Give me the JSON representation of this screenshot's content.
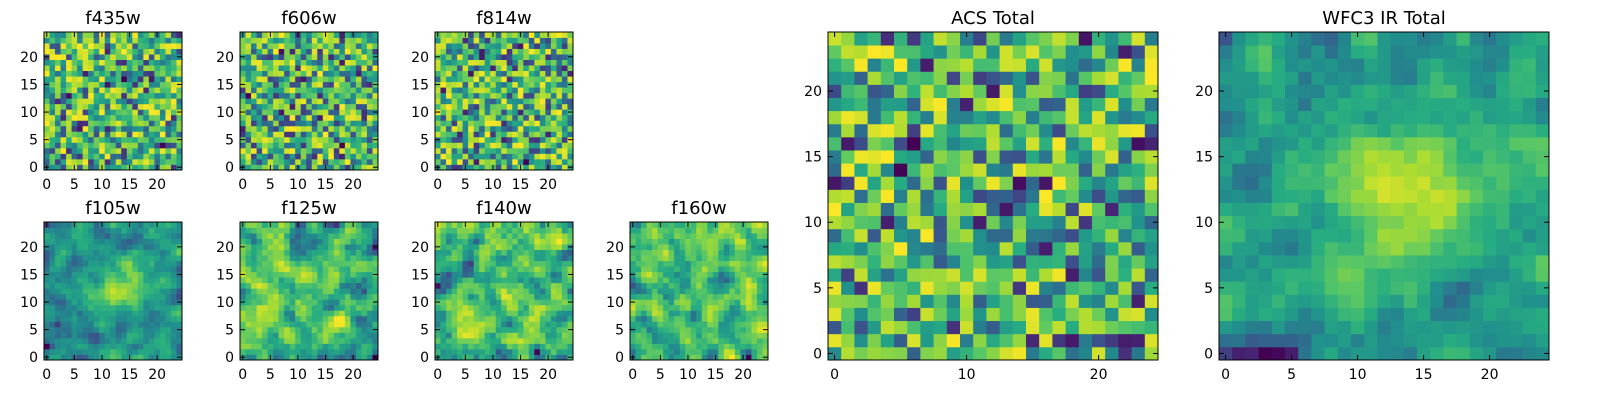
{
  "chart_data": [
    {
      "type": "heatmap",
      "title": "f435w",
      "xlim": [
        -0.5,
        24.5
      ],
      "ylim": [
        -0.5,
        24.5
      ],
      "xticks": [
        0,
        5,
        10,
        15,
        20
      ],
      "yticks": [
        0,
        5,
        10,
        15,
        20
      ],
      "grid": false,
      "colormap": "viridis"
    },
    {
      "type": "heatmap",
      "title": "f606w",
      "xlim": [
        -0.5,
        24.5
      ],
      "ylim": [
        -0.5,
        24.5
      ],
      "xticks": [
        0,
        5,
        10,
        15,
        20
      ],
      "yticks": [
        0,
        5,
        10,
        15,
        20
      ],
      "grid": false,
      "colormap": "viridis"
    },
    {
      "type": "heatmap",
      "title": "f814w",
      "xlim": [
        -0.5,
        24.5
      ],
      "ylim": [
        -0.5,
        24.5
      ],
      "xticks": [
        0,
        5,
        10,
        15,
        20
      ],
      "yticks": [
        0,
        5,
        10,
        15,
        20
      ],
      "grid": false,
      "colormap": "viridis"
    },
    {
      "type": "heatmap",
      "title": "f105w",
      "xlim": [
        -0.5,
        24.5
      ],
      "ylim": [
        -0.5,
        24.5
      ],
      "xticks": [
        0,
        5,
        10,
        15,
        20
      ],
      "yticks": [
        0,
        5,
        10,
        15,
        20
      ],
      "grid": false,
      "colormap": "viridis"
    },
    {
      "type": "heatmap",
      "title": "f125w",
      "xlim": [
        -0.5,
        24.5
      ],
      "ylim": [
        -0.5,
        24.5
      ],
      "xticks": [
        0,
        5,
        10,
        15,
        20
      ],
      "yticks": [
        0,
        5,
        10,
        15,
        20
      ],
      "grid": false,
      "colormap": "viridis"
    },
    {
      "type": "heatmap",
      "title": "f140w",
      "xlim": [
        -0.5,
        24.5
      ],
      "ylim": [
        -0.5,
        24.5
      ],
      "xticks": [
        0,
        5,
        10,
        15,
        20
      ],
      "yticks": [
        0,
        5,
        10,
        15,
        20
      ],
      "grid": false,
      "colormap": "viridis"
    },
    {
      "type": "heatmap",
      "title": "f160w",
      "xlim": [
        -0.5,
        24.5
      ],
      "ylim": [
        -0.5,
        24.5
      ],
      "xticks": [
        0,
        5,
        10,
        15,
        20
      ],
      "yticks": [
        0,
        5,
        10,
        15,
        20
      ],
      "grid": false,
      "colormap": "viridis"
    },
    {
      "type": "heatmap",
      "title": "ACS Total",
      "xlim": [
        -0.5,
        24.5
      ],
      "ylim": [
        -0.5,
        24.5
      ],
      "xticks": [
        0,
        10,
        20
      ],
      "yticks": [
        0,
        5,
        10,
        15,
        20
      ],
      "grid": false,
      "colormap": "viridis"
    },
    {
      "type": "heatmap",
      "title": "WFC3 IR Total",
      "xlim": [
        -0.5,
        24.5
      ],
      "ylim": [
        -0.5,
        24.5
      ],
      "xticks": [
        0,
        5,
        10,
        15,
        20
      ],
      "yticks": [
        0,
        5,
        10,
        15,
        20
      ],
      "grid": false,
      "colormap": "viridis"
    }
  ]
}
